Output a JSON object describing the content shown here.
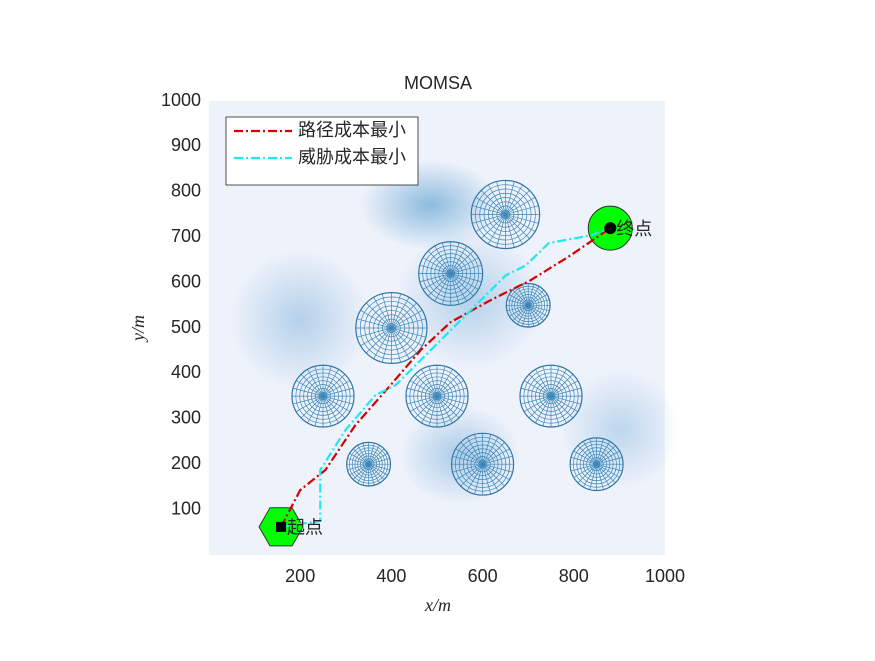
{
  "chart_data": {
    "type": "line",
    "title": "MOMSA",
    "x_label": "x/m",
    "y_label": "y/m",
    "xlim": [
      0,
      1000
    ],
    "ylim": [
      0,
      1000
    ],
    "xticks": [
      200,
      400,
      600,
      800,
      1000
    ],
    "yticks": [
      100,
      200,
      300,
      400,
      500,
      600,
      700,
      800,
      900,
      1000
    ],
    "legend_position": "upper-left",
    "series": [
      {
        "name": "路径成本最小",
        "color": "#d40000",
        "x": [
          158,
          200,
          255,
          321,
          398,
          464,
          530,
          617,
          705,
          793,
          880
        ],
        "y": [
          62,
          143,
          187,
          286,
          374,
          451,
          513,
          561,
          605,
          660,
          720
        ]
      },
      {
        "name": "威胁成本最小",
        "color": "#1ee8f0",
        "x": [
          158,
          244,
          244,
          299,
          365,
          409,
          486,
          585,
          651,
          695,
          745,
          837,
          880
        ],
        "y": [
          62,
          75,
          187,
          275,
          352,
          374,
          451,
          550,
          616,
          638,
          687,
          704,
          720
        ]
      }
    ],
    "obstacles": [
      {
        "x": 650,
        "y": 750,
        "r": 75
      },
      {
        "x": 530,
        "y": 620,
        "r": 70
      },
      {
        "x": 700,
        "y": 550,
        "r": 48
      },
      {
        "x": 400,
        "y": 500,
        "r": 78
      },
      {
        "x": 250,
        "y": 350,
        "r": 68
      },
      {
        "x": 500,
        "y": 350,
        "r": 68
      },
      {
        "x": 750,
        "y": 350,
        "r": 68
      },
      {
        "x": 350,
        "y": 200,
        "r": 48
      },
      {
        "x": 600,
        "y": 200,
        "r": 68
      },
      {
        "x": 850,
        "y": 200,
        "r": 58
      }
    ],
    "start_point": {
      "x": 158,
      "y": 62,
      "label": "起点"
    },
    "end_point": {
      "x": 880,
      "y": 720,
      "label": "终点"
    }
  }
}
